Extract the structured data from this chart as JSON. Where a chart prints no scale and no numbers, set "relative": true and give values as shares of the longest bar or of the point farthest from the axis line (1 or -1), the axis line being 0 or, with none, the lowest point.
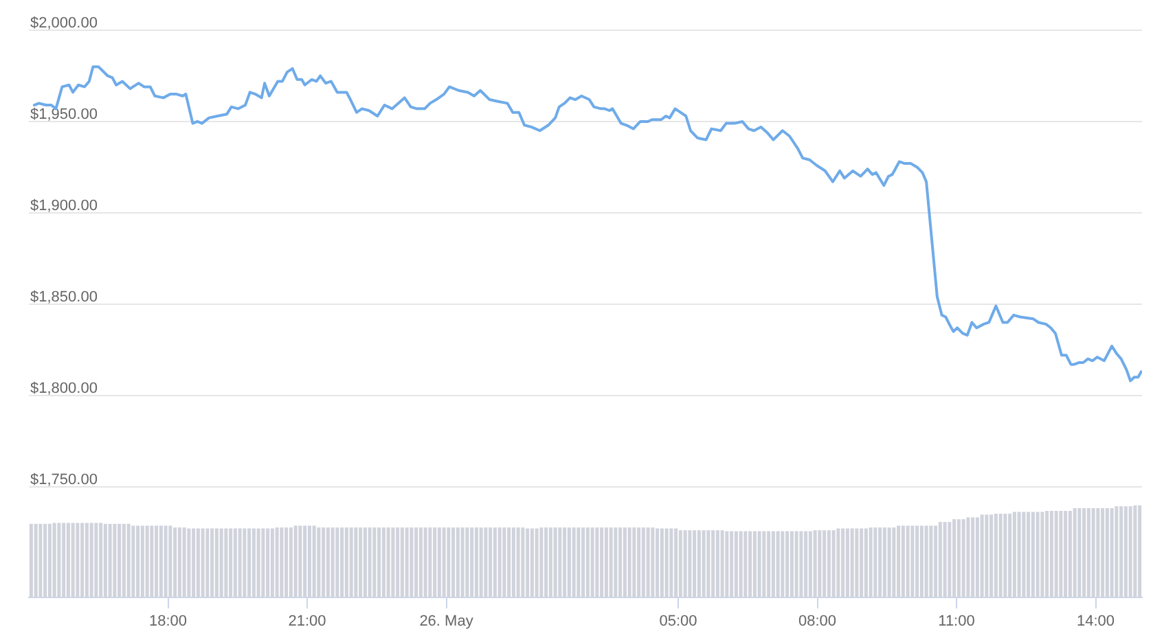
{
  "chart_data": [
    {
      "type": "line",
      "color": "#6fabe9",
      "grid": "y",
      "tick_labels": "y",
      "xlim": [
        "--05-25T15:00",
        "--05-26T15:00"
      ],
      "ylim": [
        1750,
        2000
      ],
      "yticks": [
        {
          "value": 1750,
          "label": "$1,750.00"
        },
        {
          "value": 1800,
          "label": "$1,800.00"
        },
        {
          "value": 1850,
          "label": "$1,850.00"
        },
        {
          "value": 1900,
          "label": "$1,900.00"
        },
        {
          "value": 1950,
          "label": "$1,950.00"
        },
        {
          "value": 2000,
          "label": "$2,000.00"
        }
      ],
      "x": [
        "--05-25T15:07",
        "--05-25T15:13",
        "--05-25T15:22",
        "--05-25T15:29",
        "--05-25T15:35",
        "--05-25T15:43",
        "--05-25T15:52",
        "--05-25T15:57",
        "--05-25T16:04",
        "--05-25T16:12",
        "--05-25T16:18",
        "--05-25T16:23",
        "--05-25T16:30",
        "--05-25T16:42",
        "--05-25T16:48",
        "--05-25T16:53",
        "--05-25T17:01",
        "--05-25T17:11",
        "--05-25T17:22",
        "--05-25T17:29",
        "--05-25T17:37",
        "--05-25T17:43",
        "--05-25T17:54",
        "--05-25T18:03",
        "--05-25T18:11",
        "--05-25T18:19",
        "--05-25T18:23",
        "--05-25T18:32",
        "--05-25T18:38",
        "--05-25T18:44",
        "--05-25T18:53",
        "--05-25T19:04",
        "--05-25T19:16",
        "--05-25T19:22",
        "--05-25T19:31",
        "--05-25T19:40",
        "--05-25T19:46",
        "--05-25T19:53",
        "--05-25T20:01",
        "--05-25T20:05",
        "--05-25T20:11",
        "--05-25T20:22",
        "--05-25T20:28",
        "--05-25T20:34",
        "--05-25T20:41",
        "--05-25T20:47",
        "--05-25T20:53",
        "--05-25T20:57",
        "--05-25T21:06",
        "--05-25T21:12",
        "--05-25T21:17",
        "--05-25T21:24",
        "--05-25T21:31",
        "--05-25T21:39",
        "--05-25T21:51",
        "--05-25T21:56",
        "--05-25T22:04",
        "--05-25T22:11",
        "--05-25T22:20",
        "--05-25T22:31",
        "--05-25T22:40",
        "--05-25T22:50",
        "--05-25T23:06",
        "--05-25T23:14",
        "--05-25T23:22",
        "--05-25T23:32",
        "--05-25T23:39",
        "--05-25T23:47",
        "--05-25T23:57",
        "--05-26T00:04",
        "--05-26T00:16",
        "--05-26T00:28",
        "--05-26T00:36",
        "--05-26T00:44",
        "--05-26T00:56",
        "--05-26T01:07",
        "--05-26T01:19",
        "--05-26T01:26",
        "--05-26T01:34",
        "--05-26T01:41",
        "--05-26T01:50",
        "--05-26T02:01",
        "--05-26T02:12",
        "--05-26T02:21",
        "--05-26T02:26",
        "--05-26T02:33",
        "--05-26T02:40",
        "--05-26T02:47",
        "--05-26T02:55",
        "--05-26T03:05",
        "--05-26T03:11",
        "--05-26T03:20",
        "--05-26T03:25",
        "--05-26T03:31",
        "--05-26T03:35",
        "--05-26T03:46",
        "--05-26T03:53",
        "--05-26T04:02",
        "--05-26T04:11",
        "--05-26T04:21",
        "--05-26T04:26",
        "--05-26T04:38",
        "--05-26T04:44",
        "--05-26T04:49",
        "--05-26T04:56",
        "--05-26T05:03",
        "--05-26T05:10",
        "--05-26T05:16",
        "--05-26T05:25",
        "--05-26T05:36",
        "--05-26T05:43",
        "--05-26T05:55",
        "--05-26T06:02",
        "--05-26T06:13",
        "--05-26T06:23",
        "--05-26T06:31",
        "--05-26T06:38",
        "--05-26T06:47",
        "--05-26T06:55",
        "--05-26T07:03",
        "--05-26T07:15",
        "--05-26T07:24",
        "--05-26T07:35",
        "--05-26T07:41",
        "--05-26T07:50",
        "--05-26T07:59",
        "--05-26T08:10",
        "--05-26T08:20",
        "--05-26T08:29",
        "--05-26T08:35",
        "--05-26T08:46",
        "--05-26T08:56",
        "--05-26T09:05",
        "--05-26T09:11",
        "--05-26T09:16",
        "--05-26T09:26",
        "--05-26T09:32",
        "--05-26T09:37",
        "--05-26T09:46",
        "--05-26T09:53",
        "--05-26T10:01",
        "--05-26T10:09",
        "--05-26T10:16",
        "--05-26T10:21",
        "--05-26T10:25",
        "--05-26T10:31",
        "--05-26T10:35",
        "--05-26T10:41",
        "--05-26T10:46",
        "--05-26T10:52",
        "--05-26T10:56",
        "--05-26T11:01",
        "--05-26T11:08",
        "--05-26T11:14",
        "--05-26T11:20",
        "--05-26T11:26",
        "--05-26T11:35",
        "--05-26T11:42",
        "--05-26T11:51",
        "--05-26T12:00",
        "--05-26T12:06",
        "--05-26T12:14",
        "--05-26T12:22",
        "--05-26T12:39",
        "--05-26T12:46",
        "--05-26T12:56",
        "--05-26T13:02",
        "--05-26T13:08",
        "--05-26T13:16",
        "--05-26T13:22",
        "--05-26T13:28",
        "--05-26T13:32",
        "--05-26T13:39",
        "--05-26T13:44",
        "--05-26T13:50",
        "--05-26T13:56",
        "--05-26T14:02",
        "--05-26T14:11",
        "--05-26T14:21",
        "--05-26T14:27",
        "--05-26T14:33",
        "--05-26T14:40",
        "--05-26T14:45",
        "--05-26T14:50",
        "--05-26T14:55",
        "--05-26T14:59"
      ],
      "values": [
        1959,
        1960,
        1959,
        1959,
        1957,
        1969,
        1970,
        1966,
        1970,
        1969,
        1972,
        1980,
        1980,
        1975,
        1974,
        1970,
        1972,
        1968,
        1971,
        1969,
        1969,
        1964,
        1963,
        1965,
        1965,
        1964,
        1965,
        1949,
        1950,
        1949,
        1952,
        1953,
        1954,
        1958,
        1957,
        1959,
        1966,
        1965,
        1963,
        1971,
        1964,
        1972,
        1972,
        1977,
        1979,
        1973,
        1973,
        1970,
        1973,
        1972,
        1975,
        1971,
        1972,
        1966,
        1966,
        1962,
        1955,
        1957,
        1956,
        1953,
        1959,
        1957,
        1963,
        1958,
        1957,
        1957,
        1960,
        1962,
        1965,
        1969,
        1967,
        1966,
        1964,
        1967,
        1962,
        1961,
        1960,
        1955,
        1955,
        1948,
        1947,
        1945,
        1948,
        1952,
        1958,
        1960,
        1963,
        1962,
        1964,
        1962,
        1958,
        1957,
        1957,
        1956,
        1957,
        1949,
        1948,
        1946,
        1950,
        1950,
        1951,
        1951,
        1953,
        1952,
        1957,
        1955,
        1953,
        1945,
        1941,
        1940,
        1946,
        1945,
        1949,
        1949,
        1950,
        1946,
        1945,
        1947,
        1944,
        1940,
        1945,
        1942,
        1935,
        1930,
        1929,
        1926,
        1923,
        1917,
        1923,
        1919,
        1923,
        1920,
        1924,
        1921,
        1922,
        1915,
        1920,
        1921,
        1928,
        1927,
        1927,
        1925,
        1922,
        1917,
        1899,
        1872,
        1854,
        1844,
        1843,
        1838,
        1835,
        1837,
        1834,
        1833,
        1840,
        1837,
        1839,
        1840,
        1849,
        1840,
        1840,
        1844,
        1843,
        1842,
        1840,
        1839,
        1837,
        1834,
        1822,
        1822,
        1817,
        1817,
        1818,
        1818,
        1820,
        1819,
        1821,
        1819,
        1827,
        1823,
        1820,
        1814,
        1808,
        1810,
        1810,
        1813
      ]
    },
    {
      "type": "bar",
      "color": "#d0d3dc",
      "relative": true,
      "xlim": [
        "--05-25T15:00",
        "--05-26T15:00"
      ],
      "xticks": [
        {
          "value": "--05-25T18:00",
          "label": "18:00"
        },
        {
          "value": "--05-25T21:00",
          "label": "21:00"
        },
        {
          "value": "--05-26T00:00",
          "label": "26. May"
        },
        {
          "value": "--05-26T05:00",
          "label": "05:00"
        },
        {
          "value": "--05-26T08:00",
          "label": "08:00"
        },
        {
          "value": "--05-26T11:00",
          "label": "11:00"
        },
        {
          "value": "--05-26T14:00",
          "label": "14:00"
        }
      ],
      "x": [
        "--05-25T15:03",
        "--05-25T15:09",
        "--05-25T15:15",
        "--05-25T15:21",
        "--05-25T15:27",
        "--05-25T15:33",
        "--05-25T15:39",
        "--05-25T15:45",
        "--05-25T15:51",
        "--05-25T15:57",
        "--05-25T16:03",
        "--05-25T16:09",
        "--05-25T16:15",
        "--05-25T16:21",
        "--05-25T16:27",
        "--05-25T16:33",
        "--05-25T16:39",
        "--05-25T16:45",
        "--05-25T16:51",
        "--05-25T16:57",
        "--05-25T17:03",
        "--05-25T17:09",
        "--05-25T17:15",
        "--05-25T17:21",
        "--05-25T17:27",
        "--05-25T17:33",
        "--05-25T17:39",
        "--05-25T17:45",
        "--05-25T17:51",
        "--05-25T17:57",
        "--05-25T18:03",
        "--05-25T18:09",
        "--05-25T18:15",
        "--05-25T18:21",
        "--05-25T18:27",
        "--05-25T18:33",
        "--05-25T18:39",
        "--05-25T18:45",
        "--05-25T18:51",
        "--05-25T18:57",
        "--05-25T19:03",
        "--05-25T19:09",
        "--05-25T19:15",
        "--05-25T19:21",
        "--05-25T19:27",
        "--05-25T19:33",
        "--05-25T19:39",
        "--05-25T19:45",
        "--05-25T19:51",
        "--05-25T19:57",
        "--05-25T20:03",
        "--05-25T20:09",
        "--05-25T20:15",
        "--05-25T20:21",
        "--05-25T20:27",
        "--05-25T20:33",
        "--05-25T20:39",
        "--05-25T20:45",
        "--05-25T20:51",
        "--05-25T20:57",
        "--05-25T21:03",
        "--05-25T21:09",
        "--05-25T21:15",
        "--05-25T21:21",
        "--05-25T21:27",
        "--05-25T21:33",
        "--05-25T21:39",
        "--05-25T21:45",
        "--05-25T21:51",
        "--05-25T21:57",
        "--05-25T22:03",
        "--05-25T22:09",
        "--05-25T22:15",
        "--05-25T22:21",
        "--05-25T22:27",
        "--05-25T22:33",
        "--05-25T22:39",
        "--05-25T22:45",
        "--05-25T22:51",
        "--05-25T22:57",
        "--05-25T23:03",
        "--05-25T23:09",
        "--05-25T23:15",
        "--05-25T23:21",
        "--05-25T23:27",
        "--05-25T23:33",
        "--05-25T23:39",
        "--05-25T23:45",
        "--05-25T23:51",
        "--05-25T23:57",
        "--05-26T00:03",
        "--05-26T00:09",
        "--05-26T00:15",
        "--05-26T00:21",
        "--05-26T00:27",
        "--05-26T00:33",
        "--05-26T00:39",
        "--05-26T00:45",
        "--05-26T00:51",
        "--05-26T00:57",
        "--05-26T01:03",
        "--05-26T01:09",
        "--05-26T01:15",
        "--05-26T01:21",
        "--05-26T01:27",
        "--05-26T01:33",
        "--05-26T01:39",
        "--05-26T01:45",
        "--05-26T01:51",
        "--05-26T01:57",
        "--05-26T02:03",
        "--05-26T02:09",
        "--05-26T02:15",
        "--05-26T02:21",
        "--05-26T02:27",
        "--05-26T02:33",
        "--05-26T02:39",
        "--05-26T02:45",
        "--05-26T02:51",
        "--05-26T02:57",
        "--05-26T03:03",
        "--05-26T03:09",
        "--05-26T03:15",
        "--05-26T03:21",
        "--05-26T03:27",
        "--05-26T03:33",
        "--05-26T03:39",
        "--05-26T03:45",
        "--05-26T03:51",
        "--05-26T03:57",
        "--05-26T04:03",
        "--05-26T04:09",
        "--05-26T04:15",
        "--05-26T04:21",
        "--05-26T04:27",
        "--05-26T04:33",
        "--05-26T04:39",
        "--05-26T04:45",
        "--05-26T04:51",
        "--05-26T04:57",
        "--05-26T05:03",
        "--05-26T05:09",
        "--05-26T05:15",
        "--05-26T05:21",
        "--05-26T05:27",
        "--05-26T05:33",
        "--05-26T05:39",
        "--05-26T05:45",
        "--05-26T05:51",
        "--05-26T05:57",
        "--05-26T06:03",
        "--05-26T06:09",
        "--05-26T06:15",
        "--05-26T06:21",
        "--05-26T06:27",
        "--05-26T06:33",
        "--05-26T06:39",
        "--05-26T06:45",
        "--05-26T06:51",
        "--05-26T06:57",
        "--05-26T07:03",
        "--05-26T07:09",
        "--05-26T07:15",
        "--05-26T07:21",
        "--05-26T07:27",
        "--05-26T07:33",
        "--05-26T07:39",
        "--05-26T07:45",
        "--05-26T07:51",
        "--05-26T07:57",
        "--05-26T08:03",
        "--05-26T08:09",
        "--05-26T08:15",
        "--05-26T08:21",
        "--05-26T08:27",
        "--05-26T08:33",
        "--05-26T08:39",
        "--05-26T08:45",
        "--05-26T08:51",
        "--05-26T08:57",
        "--05-26T09:03",
        "--05-26T09:09",
        "--05-26T09:15",
        "--05-26T09:21",
        "--05-26T09:27",
        "--05-26T09:33",
        "--05-26T09:39",
        "--05-26T09:45",
        "--05-26T09:51",
        "--05-26T09:57",
        "--05-26T10:03",
        "--05-26T10:09",
        "--05-26T10:15",
        "--05-26T10:21",
        "--05-26T10:27",
        "--05-26T10:33",
        "--05-26T10:39",
        "--05-26T10:45",
        "--05-26T10:51",
        "--05-26T10:57",
        "--05-26T11:03",
        "--05-26T11:09",
        "--05-26T11:15",
        "--05-26T11:21",
        "--05-26T11:27",
        "--05-26T11:33",
        "--05-26T11:39",
        "--05-26T11:45",
        "--05-26T11:51",
        "--05-26T11:57",
        "--05-26T12:03",
        "--05-26T12:09",
        "--05-26T12:15",
        "--05-26T12:21",
        "--05-26T12:27",
        "--05-26T12:33",
        "--05-26T12:39",
        "--05-26T12:45",
        "--05-26T12:51",
        "--05-26T12:57",
        "--05-26T13:03",
        "--05-26T13:09",
        "--05-26T13:15",
        "--05-26T13:21",
        "--05-26T13:27",
        "--05-26T13:33",
        "--05-26T13:39",
        "--05-26T13:45",
        "--05-26T13:51",
        "--05-26T13:57",
        "--05-26T14:03",
        "--05-26T14:09",
        "--05-26T14:15",
        "--05-26T14:21",
        "--05-26T14:27",
        "--05-26T14:33",
        "--05-26T14:39",
        "--05-26T14:45",
        "--05-26T14:51",
        "--05-26T14:57"
      ],
      "values": [
        0.8,
        0.8,
        0.8,
        0.8,
        0.8,
        0.81,
        0.81,
        0.81,
        0.81,
        0.81,
        0.81,
        0.81,
        0.81,
        0.81,
        0.81,
        0.81,
        0.8,
        0.8,
        0.8,
        0.8,
        0.8,
        0.8,
        0.78,
        0.78,
        0.78,
        0.78,
        0.78,
        0.78,
        0.78,
        0.78,
        0.78,
        0.76,
        0.76,
        0.76,
        0.75,
        0.75,
        0.75,
        0.75,
        0.75,
        0.75,
        0.75,
        0.75,
        0.75,
        0.75,
        0.75,
        0.75,
        0.75,
        0.75,
        0.75,
        0.75,
        0.75,
        0.75,
        0.75,
        0.76,
        0.76,
        0.76,
        0.76,
        0.78,
        0.78,
        0.78,
        0.78,
        0.78,
        0.76,
        0.76,
        0.76,
        0.76,
        0.76,
        0.76,
        0.76,
        0.76,
        0.76,
        0.76,
        0.76,
        0.76,
        0.76,
        0.76,
        0.76,
        0.76,
        0.76,
        0.76,
        0.76,
        0.76,
        0.76,
        0.76,
        0.76,
        0.76,
        0.76,
        0.76,
        0.76,
        0.76,
        0.76,
        0.76,
        0.76,
        0.76,
        0.76,
        0.76,
        0.76,
        0.76,
        0.76,
        0.76,
        0.76,
        0.76,
        0.76,
        0.76,
        0.76,
        0.76,
        0.76,
        0.75,
        0.75,
        0.75,
        0.76,
        0.76,
        0.76,
        0.76,
        0.76,
        0.76,
        0.76,
        0.76,
        0.76,
        0.76,
        0.76,
        0.76,
        0.76,
        0.76,
        0.76,
        0.76,
        0.76,
        0.76,
        0.76,
        0.76,
        0.76,
        0.76,
        0.76,
        0.76,
        0.76,
        0.75,
        0.75,
        0.75,
        0.75,
        0.75,
        0.73,
        0.73,
        0.73,
        0.73,
        0.73,
        0.73,
        0.73,
        0.73,
        0.73,
        0.73,
        0.72,
        0.72,
        0.72,
        0.72,
        0.72,
        0.72,
        0.72,
        0.72,
        0.72,
        0.72,
        0.72,
        0.72,
        0.72,
        0.72,
        0.72,
        0.72,
        0.72,
        0.72,
        0.72,
        0.73,
        0.73,
        0.73,
        0.73,
        0.73,
        0.75,
        0.75,
        0.75,
        0.75,
        0.75,
        0.75,
        0.75,
        0.76,
        0.76,
        0.76,
        0.76,
        0.76,
        0.76,
        0.78,
        0.78,
        0.78,
        0.78,
        0.78,
        0.78,
        0.78,
        0.78,
        0.78,
        0.82,
        0.82,
        0.82,
        0.85,
        0.85,
        0.85,
        0.87,
        0.87,
        0.87,
        0.9,
        0.9,
        0.9,
        0.91,
        0.91,
        0.91,
        0.91,
        0.93,
        0.93,
        0.93,
        0.93,
        0.93,
        0.93,
        0.93,
        0.94,
        0.94,
        0.94,
        0.94,
        0.94,
        0.94,
        0.97,
        0.97,
        0.97,
        0.97,
        0.97,
        0.97,
        0.97,
        0.97,
        0.97,
        0.99,
        0.99,
        0.99,
        0.99,
        1,
        1
      ]
    }
  ]
}
